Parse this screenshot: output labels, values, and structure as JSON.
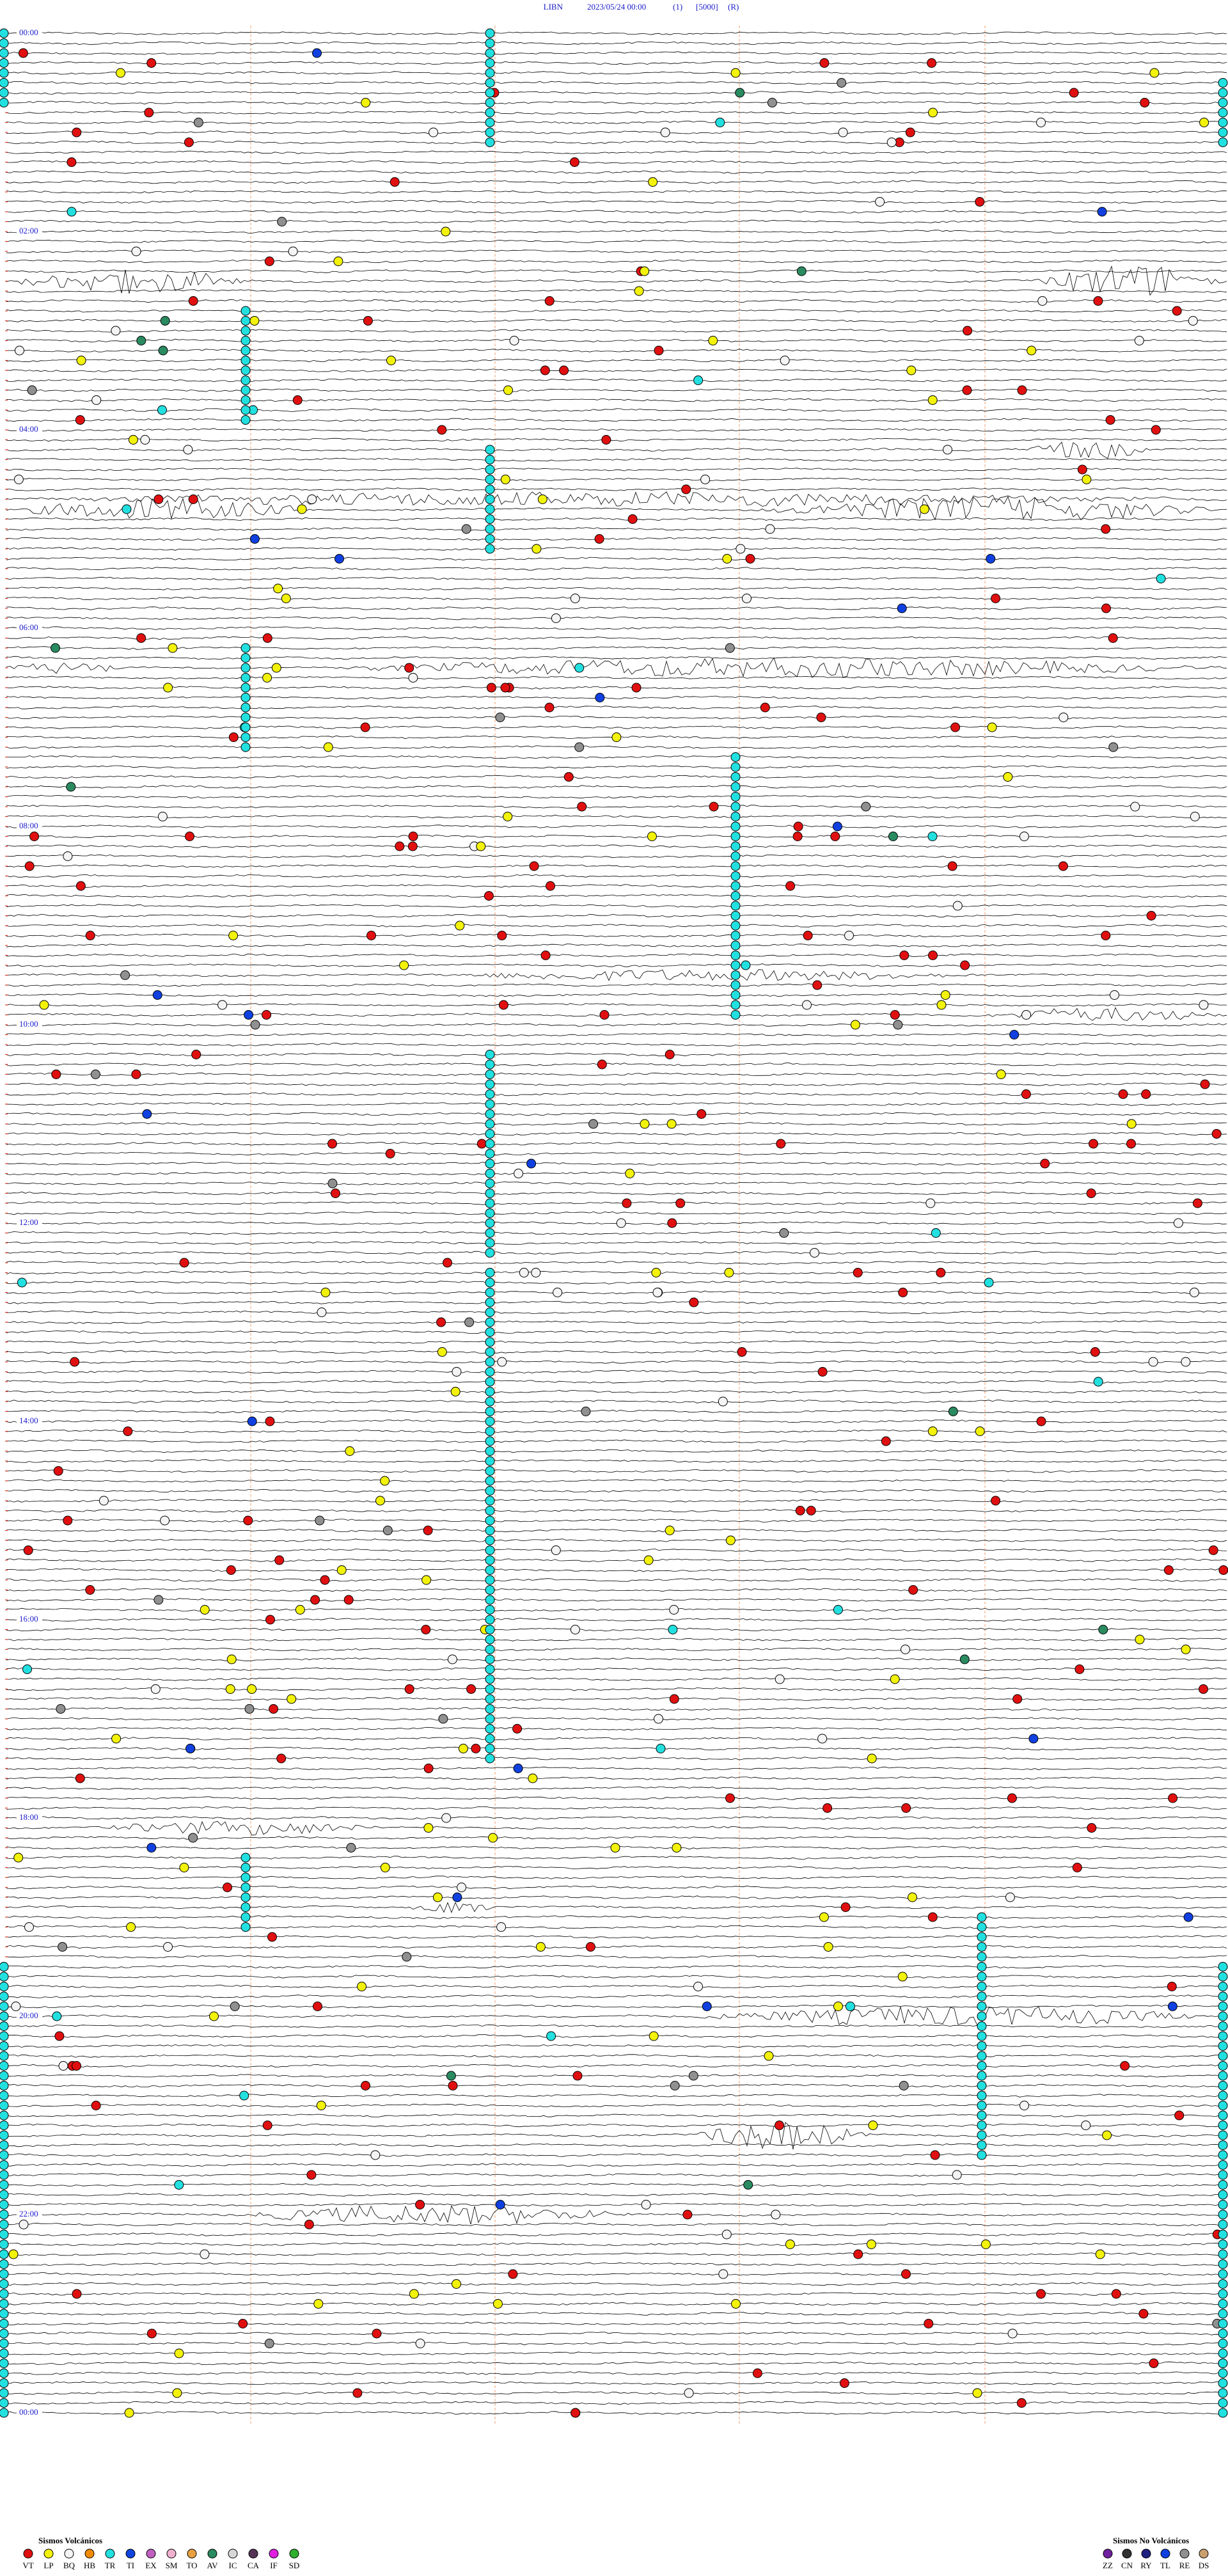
{
  "header": {
    "station": "LIBN",
    "datetime": "2023/05/24 00:00",
    "channel": "(1)",
    "gain": "[5000]",
    "mode": "(R)"
  },
  "time_labels": [
    "00:00",
    "02:00",
    "04:00",
    "06:00",
    "08:00",
    "10:00",
    "12:00",
    "14:00",
    "16:00",
    "18:00",
    "20:00",
    "22:00",
    "00:00"
  ],
  "legend_volcanic": {
    "title": "Sismos Volcánicos",
    "items": [
      {
        "code": "VT",
        "color": "#e01010"
      },
      {
        "code": "LP",
        "color": "#f2f20a"
      },
      {
        "code": "BQ",
        "color": "#f4f4f4"
      },
      {
        "code": "HB",
        "color": "#f08a00"
      },
      {
        "code": "TR",
        "color": "#22e0e0"
      },
      {
        "code": "TI",
        "color": "#1144dd"
      },
      {
        "code": "EX",
        "color": "#c060c0"
      },
      {
        "code": "SM",
        "color": "#f0b0d0"
      },
      {
        "code": "TO",
        "color": "#e8a040"
      },
      {
        "code": "AV",
        "color": "#2a8a60"
      },
      {
        "code": "IC",
        "color": "#d8d8d8"
      },
      {
        "code": "CA",
        "color": "#553355"
      },
      {
        "code": "IF",
        "color": "#e020e0"
      },
      {
        "code": "SD",
        "color": "#30b030"
      }
    ]
  },
  "legend_non_volcanic": {
    "title": "Sismos No Volcánicos",
    "items": [
      {
        "code": "ZZ",
        "color": "#7020a0"
      },
      {
        "code": "CN",
        "color": "#333333"
      },
      {
        "code": "RY",
        "color": "#202080"
      },
      {
        "code": "TL",
        "color": "#1040e0"
      },
      {
        "code": "RE",
        "color": "#909090"
      },
      {
        "code": "DS",
        "color": "#c8a070"
      }
    ]
  }
}
